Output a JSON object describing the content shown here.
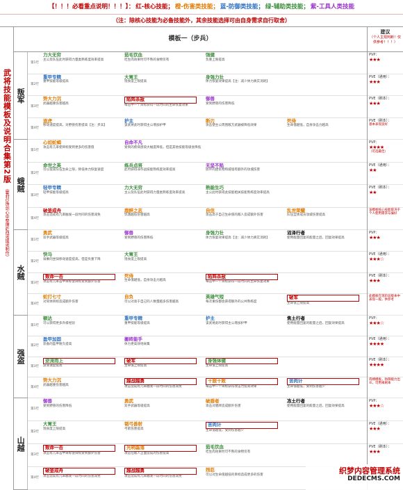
{
  "banner": {
    "p1": "【！！！必看重点说明！！！】：",
    "p2": "红-核心技能；",
    "p3": "橙-伤害类技能；",
    "p4": "蓝-防御类技能；",
    "p5": "绿-辅助类技能；",
    "p6": "紫-工具人类技能"
  },
  "note": "（注：除核心技能为必备技能外，其余技能选择可由自身需求自行取舍）",
  "left_title": "武将技能模板及说明合集第2版",
  "left_sub": "（霍村D馋剑心中整理&西诺提诺制作）",
  "template_title": "模板一（步兵）",
  "right_header": {
    "title": "建议",
    "sub": "（个人主观判断！仅供参考！！！）"
  },
  "groups": [
    {
      "name": "叛军",
      "rows": [
        {
          "label": "第1行",
          "cells": [
            {
              "n": "力大无穷",
              "c": "c-aux",
              "d": "主公及队伍此时获得力量类熟练度效率提高"
            },
            {
              "n": "茹毛饮血",
              "c": "c-aux",
              "d": "吃生肉效果时可不熟的食物仅有"
            },
            {
              "n": "强健",
              "c": "c-aux",
              "d": "负重上限提高"
            }
          ]
        },
        {
          "label": "第2行",
          "cells": [
            {
              "n": "重甲专精",
              "c": "c-def",
              "d": "重甲技能等级提高"
            },
            {
              "n": "大胃王",
              "c": "c-aux",
              "d": "饱食度上限提高"
            },
            {
              "n": "身强力壮",
              "c": "c-aux",
              "d": "体力恢复效果提高【注：减少体力真实消耗】"
            }
          ]
        },
        {
          "label": "第3行",
          "cells": [
            {
              "n": "势大力沉",
              "c": "c-dmg",
              "d": "武器越重伤害越高"
            },
            {
              "n": "陷阵杀敌",
              "c": "c-core",
              "d": "每击中一个目标获得一段时间的生命恢复效果",
              "box": true
            },
            {
              "n": "御兽",
              "c": "c-tool",
              "d": "受到野兽的伤害降低"
            }
          ]
        },
        {
          "label": "第4行",
          "cells": [
            {
              "n": "逐虎",
              "c": "c-dmg",
              "d": "移动速度提高，对野兽伤害提高【注：步兵】"
            },
            {
              "n": "护主",
              "c": "c-def",
              "d": "该武将此时获得主公增加护甲"
            },
            {
              "n": "断刃",
              "c": "c-dmg",
              "d": "攻击使主公周围敌方武器被降低效果"
            },
            {
              "n": "死侍",
              "c": "c-dmg",
              "d": "生命值越低，自身攻击力越高"
            }
          ]
        }
      ]
    },
    {
      "name": "蛾贼",
      "rows": [
        {
          "label": "第1行",
          "cells": [
            {
              "n": "心如蛇蝎",
              "c": "c-dmg",
              "d": "攻击有几率使目标受到更多的伤害值"
            },
            {
              "n": "自命不凡",
              "c": "c-tool",
              "d": "受到的疾病感染大幅度降低，但是其他技能等级会降低"
            }
          ]
        },
        {
          "label": "第2行",
          "cells": [
            {
              "n": "命世之英",
              "c": "c-aux",
              "d": "可以提高队伍生命上限，降低体力恢复速度"
            },
            {
              "n": "练兵点将",
              "c": "c-aux",
              "d": "此时获得非作战技能熟练度效率提高"
            },
            {
              "n": "无坚不陷",
              "c": "c-tool",
              "d": "损坏的建筑物和城墙有额外的攻城伤害"
            }
          ]
        },
        {
          "label": "第3行",
          "cells": [
            {
              "n": "轻甲专精",
              "c": "c-def",
              "d": "轻甲技能等级提高"
            },
            {
              "n": "力大无穷",
              "c": "c-aux",
              "d": "主公及队伍此时获得力量类熟练度效率提高"
            },
            {
              "n": "熟能生巧",
              "c": "c-aux",
              "d": "主公此时获得此技能相关技能熟练度效率提高"
            }
          ]
        },
        {
          "label": "第4行",
          "cells": [
            {
              "n": "破釜成舟",
              "c": "c-core",
              "d": "攻击造成有几率触发一段时间的伤害减免"
            },
            {
              "n": "鹿醉之志",
              "c": "c-dmg",
              "d": "饥饿越低伤害越高"
            },
            {
              "n": "自信",
              "c": "c-dmg",
              "d": "攻击高于自己生命值的敌人造成额外伤害"
            },
            {
              "n": "乱世荣耀",
              "c": "c-dmg",
              "d": "队伍全体成员攻城伤害提高"
            }
          ]
        }
      ]
    },
    {
      "name": "水贼",
      "rows": [
        {
          "label": "第1行",
          "cells": [
            {
              "n": "勇武",
              "c": "c-dmg",
              "d": "双手武器等级提高"
            },
            {
              "n": "御兽",
              "c": "c-tool",
              "d": "受到野兽的伤害降低"
            },
            {
              "n": "身强力壮",
              "c": "c-aux",
              "d": "体力恢复效果提高【注：减少体力真实消耗】"
            },
            {
              "n": "沼泽行者",
              "c": "c-k",
              "d": "使用能量回复的能量之后，回复效果提高"
            }
          ]
        },
        {
          "label": "第2行",
          "cells": [
            {
              "n": "快马",
              "c": "c-aux",
              "d": "骑乘的坐骑移动速度提高，但是负重下降"
            },
            {
              "n": "大胃王",
              "c": "c-aux",
              "d": "饱食度上限提高"
            }
          ]
        },
        {
          "label": "第3行",
          "cells": [
            {
              "n": "致命一击",
              "c": "c-core",
              "d": "攻击有几率击中目标使目标受到额外伤害",
              "box": true
            },
            {
              "n": "死侍",
              "c": "c-dmg",
              "d": "生命值越低，自身攻击力越高"
            },
            {
              "n": "陷阵杀敌",
              "c": "c-core",
              "d": "每击中一个目标获得一段时间的生命恢复效果",
              "box": true
            }
          ]
        },
        {
          "label": "第4行",
          "cells": [
            {
              "n": "蛇打七寸",
              "c": "c-dmg",
              "d": "对同体目标造成额外伤害"
            },
            {
              "n": "自负",
              "c": "c-dmg",
              "d": "可以对高于自己的人数量越多伤害越高"
            },
            {
              "n": "英雄气短",
              "c": "c-aux",
              "d": "每次重伤都会获得额外的公共熟练度"
            },
            {
              "n": "破军",
              "c": "c-core",
              "d": "生命值上限提高",
              "box": true
            }
          ]
        }
      ]
    },
    {
      "name": "强盗",
      "rows": [
        {
          "label": "第1行",
          "cells": [
            {
              "n": "额达",
              "c": "c-aux",
              "d": "可以获得更多升级经验"
            },
            {
              "n": "重甲专精",
              "c": "c-def",
              "d": "重甲技能等级提高"
            },
            {
              "n": "护主",
              "c": "c-def",
              "d": "该武将此时获得主公增加护甲"
            },
            {
              "n": "焦土行者",
              "c": "c-k",
              "d": "使用能量回复的能量之后，回复效果提高"
            }
          ]
        },
        {
          "label": "第2行",
          "cells": [
            {
              "n": "盈甲加固",
              "c": "c-def",
              "d": "装备的盔甲耐久提高"
            },
            {
              "n": "搬砖能手",
              "c": "c-tool",
              "d": "体力更高效地采集"
            }
          ]
        },
        {
          "label": "第3行",
          "cells": [
            {
              "n": "逆流而上",
              "c": "c-aux",
              "d": "游泳速度提高",
              "box": true
            },
            {
              "n": "破军",
              "c": "c-core",
              "d": "生命值上限提高",
              "box": true
            },
            {
              "n": "身强体健",
              "c": "c-aux",
              "d": "生命值上限提高",
              "box": true
            }
          ]
        },
        {
          "label": "第4行",
          "cells": [
            {
              "n": "势大力沉",
              "c": "c-dmg",
              "d": "武器越重伤害越高"
            },
            {
              "n": "越战越勇",
              "c": "c-core",
              "d": "攻击造成有几率触发一段时间的伤害减免",
              "box": true
            },
            {
              "n": "十鼓十败",
              "c": "c-dmg",
              "d": "每击中一个目标获得攻击力提高效果",
              "box": true
            },
            {
              "n": "苦肉计",
              "c": "c-def",
              "d": "生命值越低，受到伤害越少",
              "box": true
            }
          ]
        }
      ]
    },
    {
      "name": "山越",
      "rows": [
        {
          "label": "第1行",
          "cells": [
            {
              "n": "御兽",
              "c": "c-tool",
              "d": "受到野兽的伤害降低"
            },
            {
              "n": "勇武",
              "c": "c-dmg",
              "d": "双手武器等级提高"
            },
            {
              "n": "破盾者",
              "c": "c-dmg",
              "d": "攻击对盾牌造成额外伤害"
            },
            {
              "n": "冻土行者",
              "c": "c-k",
              "d": "使用能量回复的能量之后，回复效果提高"
            }
          ]
        },
        {
          "label": "第2行",
          "cells": [
            {
              "n": "大胃王",
              "c": "c-aux",
              "d": "饱食度上限提高"
            },
            {
              "n": "韬弓善射",
              "c": "c-dmg",
              "d": "弓箭伤害提高"
            },
            {
              "n": "苦肉计",
              "c": "c-def",
              "d": "生命值越低，受到伤害越少",
              "box": true
            }
          ]
        },
        {
          "label": "第3行",
          "cells": [
            {
              "n": "致命一击",
              "c": "c-core",
              "d": "攻击有几率击中目标使目标受到额外伤害",
              "box": true
            },
            {
              "n": "光明磊落",
              "c": "c-dmg",
              "d": "攻击在敌人正面造成的伤害提高",
              "box": true
            },
            {
              "n": "茹毛饮血",
              "c": "c-aux",
              "d": "吃生肉效果时可不熟的食物仅有"
            }
          ]
        },
        {
          "label": "第4行",
          "cells": [
            {
              "n": "破釜成舟",
              "c": "c-core",
              "d": "攻击造成有几率触发一段时间的伤害减免",
              "box": true
            },
            {
              "n": "越战越勇",
              "c": "c-core",
              "d": "攻击造成有几率触发一段时间的伤害减免",
              "box": true
            },
            {
              "n": "残忍",
              "c": "c-dmg",
              "d": "可以对生命值越低的目标造成更多的伤害"
            }
          ]
        }
      ]
    }
  ],
  "ratings": [
    [
      {
        "l": "PVP：",
        "s": "★★★"
      },
      {
        "l": "PVE（通用）：",
        "s": "★★★"
      },
      {
        "l": "PVE（刷本）：",
        "s": "★★★"
      },
      {
        "l": "PVE（刷本）：",
        "x": "基本表现良好"
      }
    ],
    [
      {
        "l": "PVP：",
        "s": "★★★★",
        "x": "（可选最佳）"
      },
      {
        "l": "PVE（通用）：",
        "s": "★★"
      },
      {
        "l": "PVE（刷本）：",
        "s": "★★"
      },
      {
        "l": "",
        "x": "该模板核心技能取决于个人使用需求与偏好"
      }
    ],
    [
      {
        "l": "PVP：",
        "s": "★★★"
      },
      {
        "l": "PVE（通用）：",
        "s": "★★★☆"
      },
      {
        "l": "PVE（刷本）：",
        "s": "★★★"
      },
      {
        "l": "",
        "x": "此模板在现阶段版本中表现一般，供参考"
      }
    ],
    [
      {
        "l": "PVP：",
        "s": "★★★☆"
      },
      {
        "l": "PVE（通用）：",
        "s": "★★★★"
      },
      {
        "l": "PVE（刷本）：",
        "s": "★★★★"
      },
      {
        "l": "",
        "x": "肉搏模板，防御能力出众，可用来刷本"
      }
    ],
    [
      {
        "l": "PVP：",
        "s": "★★★☆"
      },
      {
        "l": "PVE（通用）：",
        "s": "★★★"
      },
      {
        "l": "PVE（刷本）：",
        "s": "★★★"
      },
      {
        "l": "",
        "x": ""
      }
    ]
  ],
  "watermark": {
    "a": "织梦内容管理系统",
    "b": "DEDECMS.COM"
  }
}
